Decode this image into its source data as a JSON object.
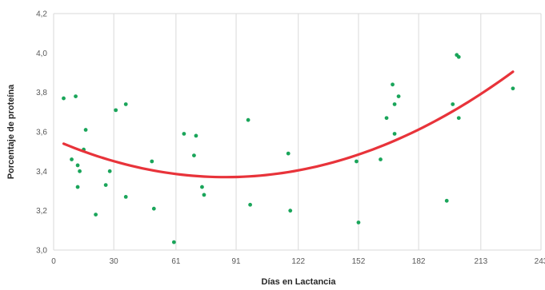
{
  "chart_data": {
    "type": "scatter",
    "title": "",
    "xlabel": "Días en Lactancia",
    "ylabel": "Porcentaje de proteína",
    "xlim": [
      0,
      243
    ],
    "ylim": [
      3.0,
      4.2
    ],
    "x_ticks": [
      0,
      30,
      61,
      91,
      122,
      152,
      182,
      213,
      243
    ],
    "x_tick_labels": [
      "0",
      "30",
      "61",
      "91",
      "122",
      "152",
      "182",
      "213",
      "243"
    ],
    "y_ticks": [
      3.0,
      3.2,
      3.4,
      3.6,
      3.8,
      4.0,
      4.2
    ],
    "y_tick_labels": [
      "3,0",
      "3,2",
      "3,4",
      "3,6",
      "3,8",
      "4,0",
      "4,2"
    ],
    "grid": "vertical",
    "legend": "none",
    "colors": {
      "points": "#1aa55a",
      "trendline": "#e8333a",
      "grid": "#d9d9d9"
    },
    "series": [
      {
        "type": "scatter",
        "x": [
          5,
          9,
          11,
          12,
          12,
          13,
          15,
          16,
          21,
          26,
          28,
          31,
          36,
          36,
          49,
          50,
          60,
          65,
          70,
          71,
          74,
          75,
          97,
          98,
          117,
          118,
          151,
          152,
          163,
          166,
          169,
          170,
          170,
          172,
          196,
          199,
          201,
          202,
          202,
          229
        ],
        "y": [
          3.77,
          3.46,
          3.78,
          3.43,
          3.32,
          3.4,
          3.51,
          3.61,
          3.18,
          3.33,
          3.4,
          3.71,
          3.74,
          3.27,
          3.45,
          3.21,
          3.04,
          3.59,
          3.48,
          3.58,
          3.32,
          3.28,
          3.66,
          3.23,
          3.49,
          3.2,
          3.45,
          3.14,
          3.46,
          3.67,
          3.84,
          3.74,
          3.59,
          3.78,
          3.25,
          3.74,
          3.99,
          3.98,
          3.67,
          3.82
        ]
      },
      {
        "type": "trendline",
        "fit": "polynomial-2",
        "x": [
          5,
          30,
          61,
          85,
          91,
          122,
          152,
          182,
          213,
          229
        ],
        "y": [
          3.535,
          3.447,
          3.393,
          3.375,
          3.377,
          3.408,
          3.48,
          3.6,
          3.77,
          3.93
        ]
      }
    ]
  }
}
